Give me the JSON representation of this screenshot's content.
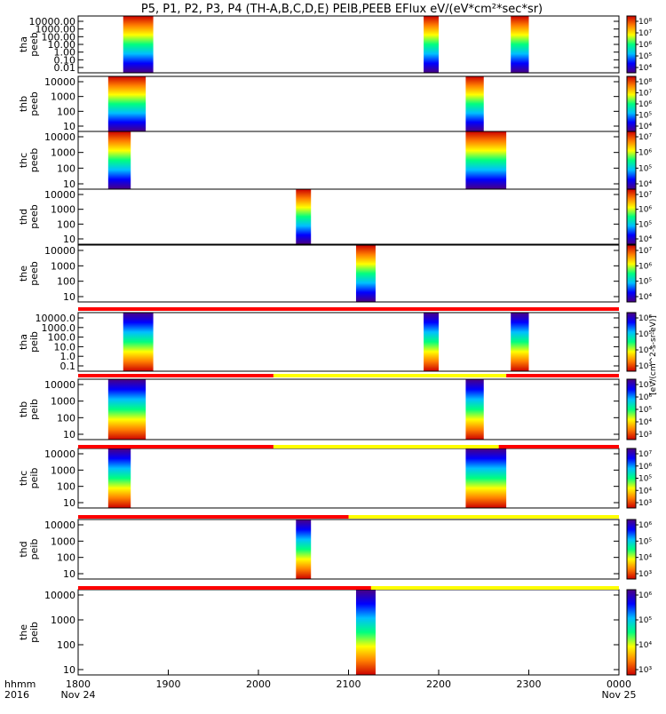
{
  "chart_data": {
    "type": "heatmap",
    "title": "P5, P1, P2, P3, P4 (TH-A,B,C,D,E) PEIB,PEEB EFlux eV/(eV*cm²*sec*sr)",
    "colorbar_label": "[eV/(cm^2-s-sr-eV)]",
    "x_ticks": [
      "1800",
      "1900",
      "2000",
      "2100",
      "2200",
      "2300",
      "0000"
    ],
    "x_date_labels": [
      "Nov 24",
      "Nov 25"
    ],
    "x_axis_label": "hhmm",
    "x_axis_year": "2016",
    "colormap": [
      "#4b0082",
      "#0000ff",
      "#00bfff",
      "#00ff7f",
      "#ffff00",
      "#ff7f00",
      "#cc0000"
    ],
    "status_colors": {
      "red": "#ff0000",
      "yellow": "#ffff00"
    },
    "panels": [
      {
        "name": "tha peeb",
        "y_ticks": [
          "10000.00",
          "1000.00",
          "100.00",
          "10.00",
          "1.00",
          "0.10",
          "0.01"
        ],
        "cb_ticks": [
          "10⁴",
          "10⁵",
          "10⁶",
          "10⁷",
          "10⁸"
        ],
        "intervals": [
          [
            "1830",
            "1850"
          ],
          [
            "2150",
            "2200"
          ],
          [
            "2248",
            "2300"
          ]
        ]
      },
      {
        "name": "thb peeb",
        "y_ticks": [
          "10000",
          "1000",
          "100",
          "10"
        ],
        "cb_ticks": [
          "10⁴",
          "10⁵",
          "10⁶",
          "10⁷",
          "10⁸"
        ],
        "intervals": [
          [
            "1820",
            "1845"
          ],
          [
            "2218",
            "2230"
          ]
        ]
      },
      {
        "name": "thc peeb",
        "y_ticks": [
          "10000",
          "1000",
          "100",
          "10"
        ],
        "cb_ticks": [
          "10⁴",
          "10⁵",
          "10⁶",
          "10⁷"
        ],
        "intervals": [
          [
            "1820",
            "1835"
          ],
          [
            "2218",
            "2245"
          ]
        ]
      },
      {
        "name": "thd peeb",
        "y_ticks": [
          "10000",
          "1000",
          "100",
          "10"
        ],
        "cb_ticks": [
          "10⁴",
          "10⁵",
          "10⁶",
          "10⁷"
        ],
        "intervals": [
          [
            "2025",
            "2035"
          ]
        ]
      },
      {
        "name": "the peeb",
        "y_ticks": [
          "10000",
          "1000",
          "100",
          "10"
        ],
        "cb_ticks": [
          "10⁴",
          "10⁵",
          "10⁶",
          "10⁷"
        ],
        "intervals": [
          [
            "2105",
            "2118"
          ]
        ]
      },
      {
        "name": "tha peib",
        "y_ticks": [
          "10000.0",
          "1000.0",
          "100.0",
          "10.0",
          "1.0",
          "0.1"
        ],
        "cb_ticks": [
          "10³",
          "10⁴",
          "10⁵",
          "10⁶"
        ],
        "intervals": [
          [
            "1830",
            "1850"
          ],
          [
            "2150",
            "2200"
          ],
          [
            "2248",
            "2300"
          ]
        ],
        "status": [
          [
            "1800",
            "0000",
            "red"
          ]
        ]
      },
      {
        "name": "thb peib",
        "y_ticks": [
          "10000",
          "1000",
          "100",
          "10"
        ],
        "cb_ticks": [
          "10³",
          "10⁴",
          "10⁵",
          "10⁶",
          "10⁷"
        ],
        "intervals": [
          [
            "1820",
            "1845"
          ],
          [
            "2218",
            "2230"
          ]
        ],
        "status": [
          [
            "1800",
            "2010",
            "red"
          ],
          [
            "2010",
            "2245",
            "yellow"
          ],
          [
            "2245",
            "0000",
            "red"
          ]
        ]
      },
      {
        "name": "thc peib",
        "y_ticks": [
          "10000",
          "1000",
          "100",
          "10"
        ],
        "cb_ticks": [
          "10³",
          "10⁴",
          "10⁵",
          "10⁶",
          "10⁷"
        ],
        "intervals": [
          [
            "1820",
            "1835"
          ],
          [
            "2218",
            "2245"
          ]
        ],
        "status": [
          [
            "1800",
            "2010",
            "red"
          ],
          [
            "2010",
            "2240",
            "yellow"
          ],
          [
            "2240",
            "0000",
            "red"
          ]
        ]
      },
      {
        "name": "thd peib",
        "y_ticks": [
          "10000",
          "1000",
          "100",
          "10"
        ],
        "cb_ticks": [
          "10³",
          "10⁴",
          "10⁵",
          "10⁶"
        ],
        "intervals": [
          [
            "2025",
            "2035"
          ]
        ],
        "status": [
          [
            "1800",
            "2100",
            "red"
          ],
          [
            "2100",
            "0000",
            "yellow"
          ]
        ]
      },
      {
        "name": "the peib",
        "y_ticks": [
          "10000",
          "1000",
          "100",
          "10"
        ],
        "cb_ticks": [
          "10³",
          "10⁴",
          "10⁵",
          "10⁶"
        ],
        "intervals": [
          [
            "2105",
            "2118"
          ]
        ],
        "status": [
          [
            "1800",
            "2115",
            "red"
          ],
          [
            "2115",
            "0000",
            "yellow"
          ]
        ]
      }
    ]
  }
}
